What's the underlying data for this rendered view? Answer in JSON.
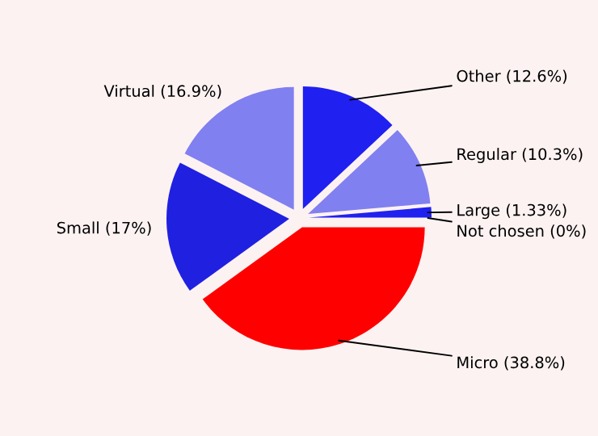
{
  "chart_data": {
    "type": "pie",
    "categories": [
      "Other",
      "Regular",
      "Large",
      "Not chosen",
      "Micro",
      "Small",
      "Virtual"
    ],
    "values": [
      12.6,
      10.3,
      1.33,
      0,
      38.8,
      17,
      16.9
    ],
    "value_labels": [
      "(12.6%)",
      "(10.3%)",
      "(1.33%)",
      "(0%)",
      "(38.8%)",
      "(17%)",
      "(16.9%)"
    ],
    "colors": [
      "#2020f0",
      "#8080f0",
      "#2020f0",
      "#2020f0",
      "#ff0000",
      "#2020e0",
      "#8080f0"
    ]
  }
}
